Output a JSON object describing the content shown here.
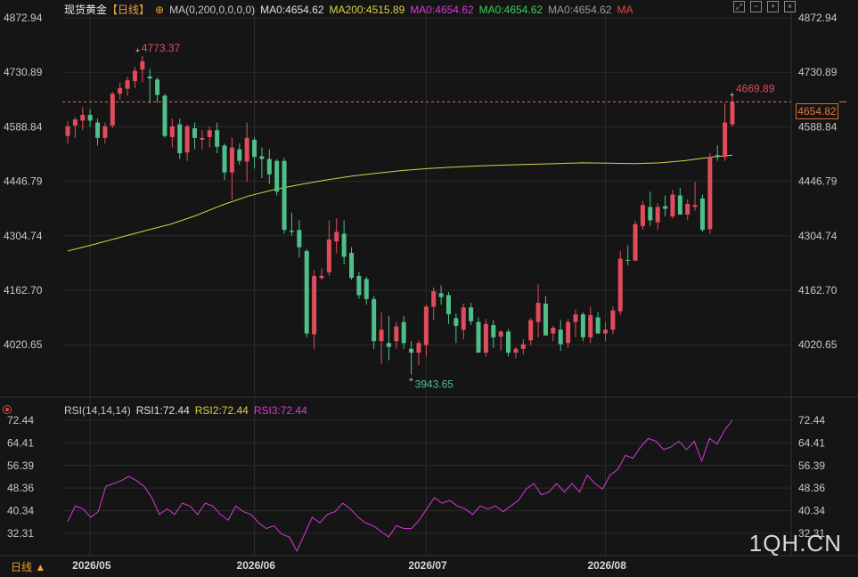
{
  "header": {
    "symbol": "现货黄金",
    "period_tag": "【日线】",
    "ma_params": "MA(0,200,0,0,0,0)",
    "ma0_a": "MA0:4654.62",
    "ma200": "MA200:4515.89",
    "ma0_b": "MA0:4654.62",
    "ma0_c": "MA0:4654.62",
    "ma0_d": "MA0:4654.62",
    "ma_label": "MA"
  },
  "rsi_header": {
    "params": "RSI(14,14,14)",
    "rsi1": "RSI1:72.44",
    "rsi2": "RSI2:72.44",
    "rsi3": "RSI3:72.44"
  },
  "footer": {
    "period": "日线 ▲",
    "watermark": "1QH.CN"
  },
  "colors": {
    "up": "#e04c5c",
    "down": "#4fbf8a",
    "ma200": "#d9d04a",
    "rsi": "#d63ad6",
    "bg": "#151515",
    "grid": "#2b2b2b",
    "axis": "#c8c8c8"
  },
  "chart_data": {
    "type": "candlestick",
    "price_ticks": [
      "4872.94",
      "4730.89",
      "4588.84",
      "4446.79",
      "4304.74",
      "4162.70",
      "4020.65"
    ],
    "rsi_ticks": [
      "72.44",
      "64.41",
      "56.39",
      "48.36",
      "40.34",
      "32.31"
    ],
    "x_labels": [
      "2026/05",
      "2026/06",
      "2026/07",
      "2026/08"
    ],
    "x_label_index": [
      3,
      25,
      48,
      72
    ],
    "high_label": "4773.37",
    "low_label": "3943.65",
    "last_high_label": "4669.89",
    "current_price": "4654.82",
    "ohlc": [
      [
        4565,
        4604,
        4545,
        4590
      ],
      [
        4592,
        4614,
        4560,
        4608
      ],
      [
        4605,
        4640,
        4580,
        4620
      ],
      [
        4620,
        4635,
        4590,
        4605
      ],
      [
        4600,
        4610,
        4540,
        4560
      ],
      [
        4560,
        4600,
        4545,
        4590
      ],
      [
        4592,
        4680,
        4585,
        4675
      ],
      [
        4675,
        4705,
        4660,
        4690
      ],
      [
        4688,
        4720,
        4670,
        4710
      ],
      [
        4708,
        4745,
        4690,
        4735
      ],
      [
        4738,
        4773,
        4705,
        4760
      ],
      [
        4720,
        4740,
        4650,
        4715
      ],
      [
        4712,
        4718,
        4652,
        4672
      ],
      [
        4670,
        4675,
        4560,
        4565
      ],
      [
        4562,
        4610,
        4535,
        4590
      ],
      [
        4595,
        4610,
        4505,
        4520
      ],
      [
        4522,
        4595,
        4500,
        4590
      ],
      [
        4585,
        4600,
        4530,
        4560
      ],
      [
        4555,
        4580,
        4530,
        4560
      ],
      [
        4562,
        4590,
        4535,
        4580
      ],
      [
        4580,
        4600,
        4520,
        4537
      ],
      [
        4540,
        4545,
        4450,
        4470
      ],
      [
        4470,
        4560,
        4400,
        4535
      ],
      [
        4530,
        4545,
        4490,
        4500
      ],
      [
        4498,
        4600,
        4445,
        4560
      ],
      [
        4555,
        4562,
        4480,
        4510
      ],
      [
        4512,
        4535,
        4455,
        4505
      ],
      [
        4505,
        4530,
        4440,
        4465
      ],
      [
        4500,
        4505,
        4410,
        4420
      ],
      [
        4500,
        4508,
        4310,
        4320
      ],
      [
        4318,
        4365,
        4305,
        4315
      ],
      [
        4320,
        4345,
        4248,
        4275
      ],
      [
        4265,
        4270,
        4040,
        4050
      ],
      [
        4048,
        4215,
        4010,
        4200
      ],
      [
        4195,
        4220,
        4190,
        4200
      ],
      [
        4210,
        4345,
        4200,
        4295
      ],
      [
        4290,
        4350,
        4260,
        4315
      ],
      [
        4310,
        4345,
        4230,
        4250
      ],
      [
        4260,
        4275,
        4190,
        4195
      ],
      [
        4200,
        4210,
        4140,
        4150
      ],
      [
        4192,
        4198,
        4125,
        4140
      ],
      [
        4140,
        4148,
        4010,
        4030
      ],
      [
        4030,
        4105,
        3970,
        4060
      ],
      [
        4025,
        4095,
        3980,
        4015
      ],
      [
        4030,
        4080,
        4010,
        4068
      ],
      [
        4080,
        4095,
        4010,
        4025
      ],
      [
        4010,
        4030,
        3943,
        4000
      ],
      [
        4000,
        4032,
        3968,
        4025
      ],
      [
        4020,
        4125,
        3990,
        4120
      ],
      [
        4120,
        4170,
        4085,
        4160
      ],
      [
        4155,
        4175,
        4125,
        4145
      ],
      [
        4150,
        4158,
        4075,
        4100
      ],
      [
        4090,
        4102,
        4025,
        4070
      ],
      [
        4060,
        4128,
        4035,
        4118
      ],
      [
        4118,
        4130,
        4072,
        4082
      ],
      [
        4080,
        4092,
        4005,
        4000
      ],
      [
        4000,
        4088,
        3990,
        4075
      ],
      [
        4072,
        4085,
        4012,
        4040
      ],
      [
        4042,
        4058,
        4005,
        4055
      ],
      [
        4055,
        4062,
        3990,
        4000
      ],
      [
        4000,
        4015,
        3985,
        4010
      ],
      [
        4010,
        4035,
        3995,
        4022
      ],
      [
        4032,
        4090,
        4020,
        4085
      ],
      [
        4080,
        4178,
        4040,
        4130
      ],
      [
        4128,
        4148,
        4048,
        4045
      ],
      [
        4050,
        4070,
        4030,
        4065
      ],
      [
        4060,
        4085,
        4005,
        4022
      ],
      [
        4025,
        4088,
        4012,
        4080
      ],
      [
        4080,
        4112,
        4040,
        4100
      ],
      [
        4100,
        4105,
        4030,
        4040
      ],
      [
        4040,
        4120,
        4025,
        4098
      ],
      [
        4092,
        4106,
        4050,
        4050
      ],
      [
        4050,
        4080,
        4030,
        4060
      ],
      [
        4060,
        4120,
        4048,
        4110
      ],
      [
        4108,
        4265,
        4098,
        4245
      ],
      [
        4242,
        4280,
        4228,
        4240
      ],
      [
        4240,
        4345,
        4238,
        4335
      ],
      [
        4330,
        4395,
        4320,
        4385
      ],
      [
        4380,
        4420,
        4330,
        4345
      ],
      [
        4340,
        4390,
        4320,
        4380
      ],
      [
        4382,
        4410,
        4355,
        4375
      ],
      [
        4355,
        4425,
        4350,
        4412
      ],
      [
        4410,
        4430,
        4365,
        4360
      ],
      [
        4360,
        4400,
        4345,
        4388
      ],
      [
        4380,
        4445,
        4370,
        4385
      ],
      [
        4402,
        4412,
        4316,
        4320
      ],
      [
        4322,
        4520,
        4310,
        4510
      ],
      [
        4515,
        4540,
        4500,
        4510
      ],
      [
        4510,
        4650,
        4500,
        4600
      ],
      [
        4595,
        4670,
        4590,
        4654
      ]
    ],
    "ma200": [
      [
        0,
        4265
      ],
      [
        5,
        4282
      ],
      [
        10,
        4300
      ],
      [
        15,
        4318
      ],
      [
        20,
        4335
      ],
      [
        25,
        4358
      ],
      [
        30,
        4385
      ],
      [
        35,
        4408
      ],
      [
        40,
        4425
      ],
      [
        45,
        4438
      ],
      [
        50,
        4450
      ],
      [
        55,
        4460
      ],
      [
        60,
        4468
      ],
      [
        65,
        4475
      ],
      [
        70,
        4480
      ],
      [
        75,
        4484
      ],
      [
        80,
        4487
      ],
      [
        85,
        4489
      ],
      [
        90,
        4491
      ],
      [
        95,
        4493
      ],
      [
        100,
        4495
      ],
      [
        105,
        4494
      ],
      [
        110,
        4493
      ],
      [
        115,
        4495
      ],
      [
        120,
        4501
      ],
      [
        125,
        4510
      ],
      [
        129,
        4515
      ]
    ],
    "rsi": [
      [
        0,
        36.5
      ],
      [
        2,
        42
      ],
      [
        4,
        41
      ],
      [
        6,
        38
      ],
      [
        8,
        40
      ],
      [
        10,
        49
      ],
      [
        12,
        50
      ],
      [
        14,
        51
      ],
      [
        16,
        52.5
      ],
      [
        18,
        51
      ],
      [
        20,
        49
      ],
      [
        22,
        45
      ],
      [
        24,
        39
      ],
      [
        26,
        41
      ],
      [
        28,
        39
      ],
      [
        30,
        43
      ],
      [
        32,
        42
      ],
      [
        34,
        39
      ],
      [
        36,
        43
      ],
      [
        38,
        42
      ],
      [
        40,
        39
      ],
      [
        42,
        37
      ],
      [
        44,
        42
      ],
      [
        46,
        40
      ],
      [
        48,
        39
      ],
      [
        50,
        36
      ],
      [
        52,
        34
      ],
      [
        54,
        35
      ],
      [
        56,
        32
      ],
      [
        58,
        31
      ],
      [
        60,
        26
      ],
      [
        62,
        32
      ],
      [
        64,
        38
      ],
      [
        66,
        36
      ],
      [
        68,
        39
      ],
      [
        70,
        40
      ],
      [
        72,
        43
      ],
      [
        74,
        41
      ],
      [
        76,
        38
      ],
      [
        78,
        36
      ],
      [
        80,
        35
      ],
      [
        82,
        33
      ],
      [
        84,
        31
      ],
      [
        86,
        35
      ],
      [
        88,
        34
      ],
      [
        90,
        34
      ],
      [
        92,
        37
      ],
      [
        94,
        41
      ],
      [
        96,
        45
      ],
      [
        98,
        43
      ],
      [
        100,
        44
      ],
      [
        102,
        42
      ],
      [
        104,
        41
      ],
      [
        106,
        39
      ],
      [
        108,
        42
      ],
      [
        110,
        41
      ],
      [
        112,
        42
      ],
      [
        114,
        40
      ],
      [
        116,
        42
      ],
      [
        118,
        44
      ],
      [
        120,
        48
      ],
      [
        122,
        50
      ],
      [
        124,
        46
      ],
      [
        126,
        47
      ],
      [
        128,
        50
      ],
      [
        130,
        47
      ],
      [
        132,
        50
      ],
      [
        134,
        47
      ],
      [
        136,
        53
      ],
      [
        138,
        50
      ],
      [
        140,
        48
      ],
      [
        142,
        53
      ],
      [
        144,
        55
      ],
      [
        146,
        60
      ],
      [
        148,
        59
      ],
      [
        150,
        63
      ],
      [
        152,
        66
      ],
      [
        154,
        65
      ],
      [
        156,
        62
      ],
      [
        158,
        63
      ],
      [
        160,
        65
      ],
      [
        162,
        62
      ],
      [
        164,
        65
      ],
      [
        166,
        58
      ],
      [
        168,
        66
      ],
      [
        170,
        64
      ],
      [
        172,
        69
      ],
      [
        174,
        72.44
      ]
    ]
  }
}
